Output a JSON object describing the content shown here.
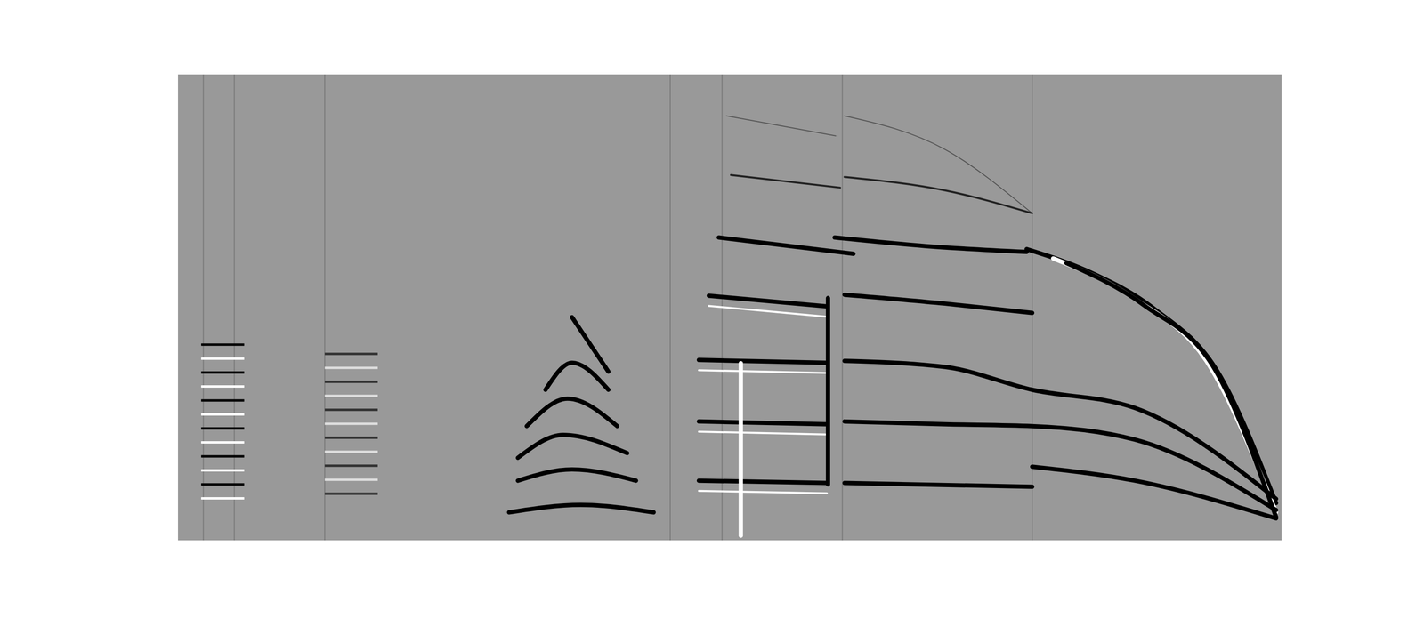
{
  "chart_data": {
    "type": "line",
    "tick_labels": false,
    "color": "#999999",
    "xlim": [
      0,
      100
    ],
    "ylim": [
      0,
      100
    ],
    "vertical_lines": [
      2.3,
      5.1,
      13.3,
      44.6,
      49.3,
      60.2,
      77.4
    ],
    "events": [
      {
        "color": "#555555",
        "line_style": "thin",
        "x": [
          49.7,
          59.6
        ],
        "y": [
          91.1,
          86.8
        ]
      },
      {
        "color": "#555555",
        "line_style": "thin",
        "x": [
          60.4,
          69.5,
          77.4
        ],
        "y": [
          91.1,
          83.9,
          70.2
        ]
      },
      {
        "color": "#222222",
        "line_style": "medium",
        "x": [
          50.1,
          60.0
        ],
        "y": [
          78.4,
          75.7
        ]
      },
      {
        "color": "#222222",
        "line_style": "medium",
        "x": [
          60.4,
          69.5,
          77.4
        ],
        "y": [
          78.0,
          75.1,
          70.2
        ]
      },
      {
        "color": "#000000",
        "line_style": "thick",
        "x": [
          49.0,
          61.2
        ],
        "y": [
          65.0,
          61.5
        ]
      },
      {
        "color": "#000000",
        "line_style": "thick",
        "x": [
          59.5,
          68.6,
          76.9
        ],
        "y": [
          65.0,
          63.0,
          61.9
        ]
      },
      {
        "color": "#000000",
        "line_style": "thick",
        "x": [
          76.9,
          82.6,
          88.4,
          94.2,
          99.5
        ],
        "y": [
          62.5,
          57.6,
          49.8,
          36.2,
          8.0
        ]
      },
      {
        "color": "#ffffff",
        "line_style": "thick",
        "x": [
          79.3,
          86.7,
          93.3,
          99.5
        ],
        "y": [
          60.5,
          51.8,
          38.1,
          6.0
        ]
      },
      {
        "color": "#000000",
        "line_style": "thick",
        "x": [
          80.5,
          87.5,
          94.0,
          99.5
        ],
        "y": [
          59.5,
          50.5,
          36.5,
          5.0
        ]
      },
      {
        "color": "#000000",
        "line_style": "thick",
        "x": [
          48.1,
          58.8
        ],
        "y": [
          52.5,
          50.2
        ]
      },
      {
        "color": "#000000",
        "line_style": "thick",
        "x": [
          60.4,
          69.5,
          77.4
        ],
        "y": [
          52.7,
          50.8,
          48.8
        ]
      },
      {
        "color": "#000000",
        "line_style": "thick",
        "x": [
          47.2,
          58.8
        ],
        "y": [
          38.7,
          38.1
        ]
      },
      {
        "color": "#000000",
        "line_style": "thick",
        "x": [
          60.4,
          69.5,
          77.4,
          86.7,
          99.5
        ],
        "y": [
          38.5,
          37.2,
          32.3,
          28.4,
          8.9
        ]
      },
      {
        "color": "#000000",
        "line_style": "thick",
        "x": [
          47.2,
          58.8
        ],
        "y": [
          25.5,
          24.9
        ]
      },
      {
        "color": "#000000",
        "line_style": "thick",
        "x": [
          60.4,
          69.5,
          77.4,
          86.7,
          99.5
        ],
        "y": [
          25.5,
          24.9,
          24.5,
          21.6,
          6.5
        ]
      },
      {
        "color": "#000000",
        "line_style": "thick",
        "x": [
          47.2,
          58.8
        ],
        "y": [
          12.8,
          12.3
        ]
      },
      {
        "color": "#000000",
        "line_style": "thick",
        "x": [
          60.4,
          77.4
        ],
        "y": [
          12.3,
          11.5
        ]
      },
      {
        "color": "#000000",
        "line_style": "thick",
        "x": [
          77.4,
          86.7,
          99.5
        ],
        "y": [
          15.8,
          12.8,
          4.7
        ]
      },
      {
        "color": "#ffffff",
        "line_style": "medium",
        "x": [
          48.1,
          58.8
        ],
        "y": [
          50.3,
          48.0
        ]
      },
      {
        "color": "#ffffff",
        "line_style": "medium",
        "x": [
          47.2,
          58.8
        ],
        "y": [
          36.5,
          35.9
        ]
      },
      {
        "color": "#ffffff",
        "line_style": "medium",
        "x": [
          47.2,
          58.8
        ],
        "y": [
          23.3,
          22.7
        ]
      },
      {
        "color": "#ffffff",
        "line_style": "medium",
        "x": [
          47.2,
          58.8
        ],
        "y": [
          10.6,
          10.1
        ]
      },
      {
        "color": "#ffffff",
        "line_style": "thick",
        "x": [
          51.0,
          51.0
        ],
        "y": [
          38,
          1
        ]
      },
      {
        "color": "#000000",
        "line_style": "thick",
        "x": [
          58.9,
          58.9
        ],
        "y": [
          52,
          12
        ]
      },
      {
        "color": "#000000",
        "line_style": "thick",
        "x": [
          30.0,
          36.5,
          43.1
        ],
        "y": [
          6.0,
          7.6,
          6.0
        ]
      },
      {
        "color": "#000000",
        "line_style": "thick",
        "x": [
          30.8,
          35.7,
          41.5
        ],
        "y": [
          12.8,
          15.2,
          12.8
        ]
      },
      {
        "color": "#000000",
        "line_style": "thick",
        "x": [
          30.8,
          34.9,
          40.7
        ],
        "y": [
          17.7,
          22.6,
          18.7
        ]
      },
      {
        "color": "#000000",
        "line_style": "thick",
        "x": [
          31.6,
          35.3,
          39.8
        ],
        "y": [
          24.5,
          30.4,
          24.5
        ]
      },
      {
        "color": "#000000",
        "line_style": "thick",
        "x": [
          33.3,
          35.7,
          39.0
        ],
        "y": [
          32.3,
          38.1,
          32.3
        ]
      },
      {
        "color": "#000000",
        "line_style": "thick",
        "x": [
          35.7,
          39.0
        ],
        "y": [
          47.9,
          36.2
        ]
      }
    ],
    "wavelets": [
      {
        "x": [
          2.1,
          6.0
        ],
        "y": [
          42,
          39,
          36,
          33,
          30,
          27,
          24,
          21,
          18,
          15,
          12,
          9
        ],
        "colors": [
          "#000000",
          "#ffffff"
        ]
      },
      {
        "x": [
          13.3,
          18.1
        ],
        "y": [
          40,
          37,
          34,
          31,
          28,
          25,
          22,
          19,
          16,
          13,
          10
        ],
        "colors": [
          "#333333",
          "#dddddd"
        ]
      }
    ]
  }
}
